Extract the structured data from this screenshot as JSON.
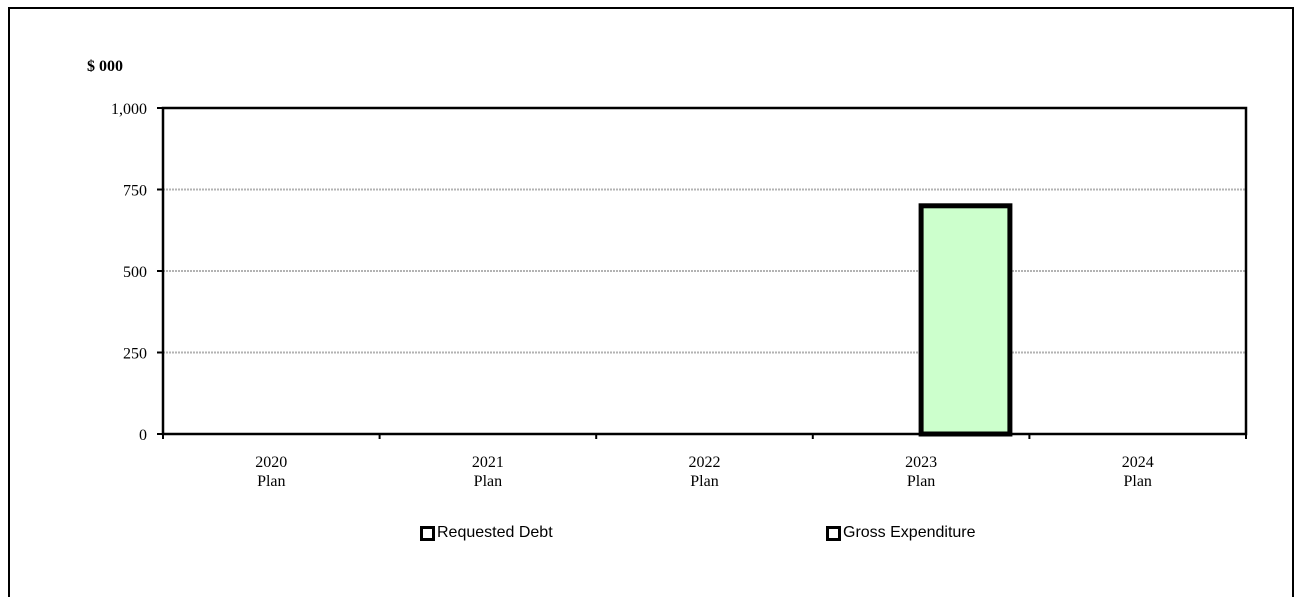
{
  "chart_data": {
    "type": "bar",
    "unit_label": "$ 000",
    "categories": [
      [
        "2020",
        "Plan"
      ],
      [
        "2021",
        "Plan"
      ],
      [
        "2022",
        "Plan"
      ],
      [
        "2023",
        "Plan"
      ],
      [
        "2024",
        "Plan"
      ]
    ],
    "series": [
      {
        "name": "Requested Debt",
        "values": [
          0,
          0,
          0,
          0,
          0
        ],
        "fill": "#ffffff"
      },
      {
        "name": "Gross Expenditure",
        "values": [
          0,
          0,
          0,
          700,
          0
        ],
        "fill": "#ccffcc"
      }
    ],
    "ylim": [
      0,
      1000
    ],
    "yticks": [
      0,
      250,
      500,
      750,
      1000
    ],
    "ytick_labels": [
      "0",
      "250",
      "500",
      "750",
      "1,000"
    ],
    "grid": true,
    "grid_color": "#b3b3b3",
    "legend_position": "bottom"
  }
}
